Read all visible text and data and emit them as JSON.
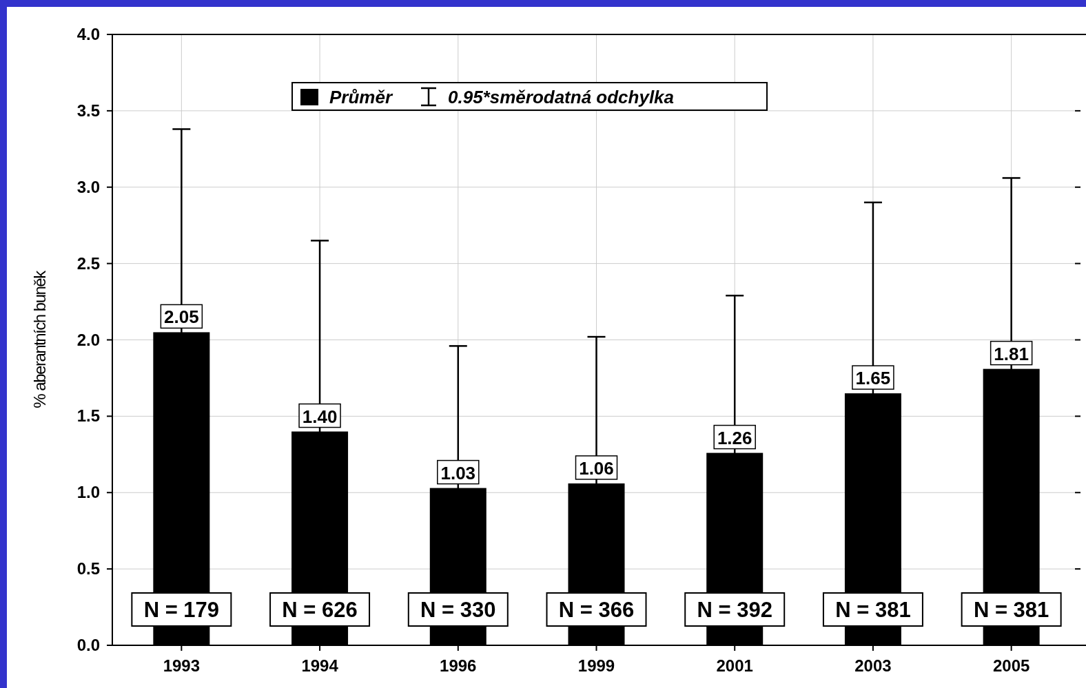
{
  "chart_data": {
    "type": "bar",
    "ylabel": "% aberantních buněk",
    "categories": [
      "1993",
      "1994",
      "1996",
      "1999",
      "2001",
      "2003",
      "2005"
    ],
    "series": [
      {
        "name": "Průměr",
        "color": "#000000",
        "values": [
          2.05,
          1.4,
          1.03,
          1.06,
          1.26,
          1.65,
          1.81
        ],
        "value_labels": [
          "2.05",
          "1.40",
          "1.03",
          "1.06",
          "1.26",
          "1.65",
          "1.81"
        ],
        "errors": [
          1.33,
          1.25,
          0.93,
          0.96,
          1.03,
          1.25,
          1.25
        ]
      }
    ],
    "ylim": [
      0,
      4
    ],
    "yticks": [
      {
        "value": 0,
        "label": "0.0"
      },
      {
        "value": 0.5,
        "label": "0.5"
      },
      {
        "value": 1,
        "label": "1.0"
      },
      {
        "value": 1.5,
        "label": "1.5"
      },
      {
        "value": 2,
        "label": "2.0"
      },
      {
        "value": 2.5,
        "label": "2.5"
      },
      {
        "value": 3,
        "label": "3.0"
      },
      {
        "value": 3.5,
        "label": "3.5"
      },
      {
        "value": 4,
        "label": "4.0"
      }
    ],
    "grid": true,
    "legend": "top",
    "annotations": [
      "0.95*směrodatná odchylka",
      "N = 179",
      "N = 626",
      "N = 330",
      "N = 366",
      "N = 392",
      "N = 381",
      "N = 381"
    ]
  }
}
